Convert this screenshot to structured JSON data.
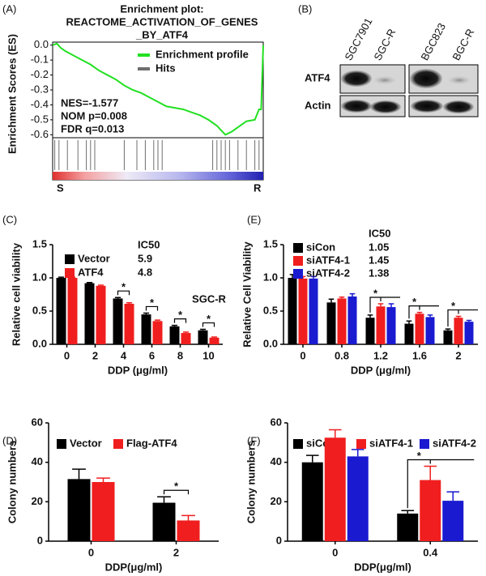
{
  "chart_data": [
    {
      "type": "enrichment",
      "panel_label": "(A)",
      "title": [
        "Enrichment plot:",
        "REACTOME_ACTIVATION_OF_GENES",
        "_BY_ATF4"
      ],
      "ylabel": "Enrichment Scores (ES)",
      "xlim": [
        0,
        100
      ],
      "ylim": [
        -0.62,
        0.02
      ],
      "yticks": [
        {
          "value": 0,
          "label": "0.0"
        },
        -0.1,
        -0.2,
        -0.3,
        -0.4,
        -0.5,
        -0.6
      ],
      "series": [
        {
          "name": "Enrichment profile",
          "color": "#22e022",
          "x": [
            0,
            2,
            4,
            6,
            10,
            14,
            18,
            22,
            26,
            30,
            34,
            38,
            42,
            46,
            50,
            54,
            58,
            62,
            66,
            70,
            74,
            78,
            80,
            82,
            85,
            88,
            92,
            96,
            98,
            99,
            100
          ],
          "values": [
            0,
            0.01,
            -0.02,
            -0.04,
            -0.07,
            -0.1,
            -0.13,
            -0.17,
            -0.2,
            -0.23,
            -0.27,
            -0.3,
            -0.32,
            -0.35,
            -0.38,
            -0.41,
            -0.42,
            -0.43,
            -0.45,
            -0.47,
            -0.5,
            -0.54,
            -0.57,
            -0.6,
            -0.58,
            -0.55,
            -0.51,
            -0.5,
            -0.43,
            -0.43,
            0
          ]
        }
      ],
      "hits": {
        "name": "Hits",
        "color": "#6e6e6e",
        "x": [
          1,
          3,
          7,
          12,
          16,
          18,
          20,
          34,
          40,
          44,
          48,
          50,
          52,
          76,
          78,
          80,
          82,
          84,
          88,
          92,
          96,
          98
        ]
      },
      "annotations": [
        "NES=-1.577",
        "NOM p=0.008",
        "FDR q=0.013"
      ],
      "ends": [
        "S",
        "R"
      ]
    },
    {
      "type": "bar",
      "panel_label": "(C)",
      "ylabel": "Relative cell viability",
      "xlabel": "DDP (μg/ml)",
      "categories": [
        "0",
        "2",
        "4",
        "6",
        "8",
        "10"
      ],
      "ylim": [
        0,
        1.5
      ],
      "yticks": [
        {
          "value": 0,
          "label": "0.0"
        },
        0.5,
        {
          "value": 1,
          "label": "1.0"
        },
        1.5
      ],
      "ic50_title": "IC50",
      "note": "SGC-R",
      "series": [
        {
          "name": "Vector",
          "color": "#000000",
          "values": [
            1.0,
            0.92,
            0.69,
            0.45,
            0.27,
            0.21
          ],
          "errors": [
            0.01,
            0.01,
            0.015,
            0.02,
            0.015,
            0.015
          ],
          "ic50": 5.9
        },
        {
          "name": "ATF4",
          "color": "#f01e1e",
          "values": [
            1.0,
            0.88,
            0.61,
            0.35,
            0.17,
            0.1
          ],
          "errors": [
            0.01,
            0.01,
            0.015,
            0.015,
            0.015,
            0.01
          ],
          "ic50": 4.8
        }
      ],
      "annotations": [
        "*",
        "*",
        "*",
        "*"
      ]
    },
    {
      "type": "bar",
      "panel_label": "(D)",
      "ylabel": "Colony numbers",
      "xlabel": "DDP(μg/ml)",
      "categories": [
        "0",
        "2"
      ],
      "ylim": [
        0,
        60
      ],
      "yticks": [
        0,
        20,
        40,
        60
      ],
      "series": [
        {
          "name": "Vector",
          "color": "#000000",
          "values": [
            31.5,
            19.5
          ],
          "errors": [
            5,
            3
          ]
        },
        {
          "name": "Flag-ATF4",
          "color": "#f01e1e",
          "values": [
            30,
            10.5
          ],
          "errors": [
            2,
            2.5
          ]
        }
      ],
      "annotations": [
        "*"
      ]
    },
    {
      "type": "bar",
      "panel_label": "(E)",
      "ylabel": "Relative Cell Viability",
      "xlabel": "DDP (μg/ml)",
      "categories": [
        "0",
        "0.8",
        "1.2",
        "1.6",
        "2"
      ],
      "ylim": [
        0,
        1.5
      ],
      "yticks": [
        {
          "value": 0,
          "label": "0.0"
        },
        0.5,
        {
          "value": 1,
          "label": "1.0"
        },
        1.5
      ],
      "ic50_title": "IC50",
      "series": [
        {
          "name": "siCon",
          "color": "#000000",
          "values": [
            1.0,
            0.63,
            0.4,
            0.31,
            0.21
          ],
          "errors": [
            0.05,
            0.05,
            0.04,
            0.04,
            0.02
          ],
          "ic50": 1.05
        },
        {
          "name": "siATF4-1",
          "color": "#f01e1e",
          "values": [
            0.99,
            0.69,
            0.57,
            0.46,
            0.4
          ],
          "errors": [
            0.03,
            0.02,
            0.04,
            0.02,
            0.02
          ],
          "ic50": 1.45
        },
        {
          "name": "siATF4-2",
          "color": "#1a1ad0",
          "values": [
            0.99,
            0.72,
            0.56,
            0.41,
            0.34
          ],
          "errors": [
            0.03,
            0.04,
            0.05,
            0.03,
            0.02
          ],
          "ic50": 1.38
        }
      ],
      "annotations": [
        "*",
        "*",
        "*"
      ]
    },
    {
      "type": "bar",
      "panel_label": "(F)",
      "ylabel": "Colony numbers",
      "xlabel": "DDP(μg/ml)",
      "categories": [
        "0",
        "0.4"
      ],
      "ylim": [
        0,
        60
      ],
      "yticks": [
        0,
        20,
        40,
        60
      ],
      "series": [
        {
          "name": "siCon",
          "color": "#000000",
          "values": [
            40,
            14
          ],
          "errors": [
            3.5,
            1.5
          ]
        },
        {
          "name": "siATF4-1",
          "color": "#f01e1e",
          "values": [
            52.5,
            31
          ],
          "errors": [
            4,
            7
          ]
        },
        {
          "name": "siATF4-2",
          "color": "#1a1ad0",
          "values": [
            43,
            20.5
          ],
          "errors": [
            3.5,
            4.5
          ]
        }
      ],
      "annotations": [
        "*"
      ]
    }
  ],
  "blot": {
    "panel_label": "(B)",
    "lanes": [
      "SGC7901",
      "SGC-R",
      "BGC823",
      "BGC-R"
    ],
    "rows": [
      "ATF4",
      "Actin"
    ]
  }
}
